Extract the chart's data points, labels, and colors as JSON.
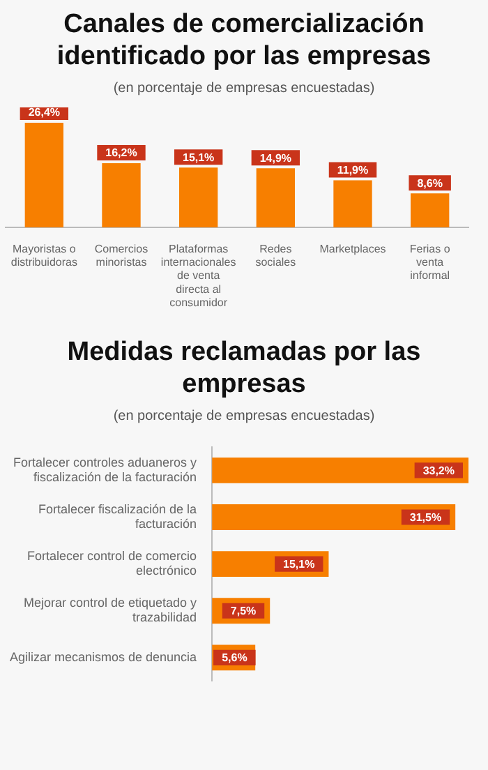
{
  "chart_data": [
    {
      "type": "bar",
      "title": "Canales de comercialización identificado por las empresas",
      "subtitle": "(en porcentaje de empresas encuestadas)",
      "categories": [
        "Mayoristas o distribuidoras",
        "Comercios minoristas",
        "Plataformas internacionales de venta directa al consumidor",
        "Redes sociales",
        "Marketplaces",
        "Ferias o venta informal"
      ],
      "values": [
        26.4,
        16.2,
        15.1,
        14.9,
        11.9,
        8.6
      ],
      "color": "#f77f00",
      "value_labels": [
        "26,4%",
        "16,2%",
        "15,1%",
        "14,9%",
        "11,9%",
        "8,6%"
      ]
    },
    {
      "type": "bar",
      "orientation": "horizontal",
      "title": "Medidas reclamadas por las empresas",
      "subtitle": "(en porcentaje de empresas encuestadas)",
      "categories": [
        "Fortalecer controles aduaneros y fiscalización de la facturación",
        "Fortalecer fiscalización de la facturación",
        "Fortalecer control de comercio electrónico",
        "Mejorar control de etiquetado y trazabilidad",
        "Agilizar mecanismos de denuncia"
      ],
      "values": [
        33.2,
        31.5,
        15.1,
        7.5,
        5.6
      ],
      "color": "#f77f00",
      "value_labels": [
        "33,2%",
        "31,5%",
        "15,1%",
        "7,5%",
        "5,6%"
      ]
    }
  ]
}
